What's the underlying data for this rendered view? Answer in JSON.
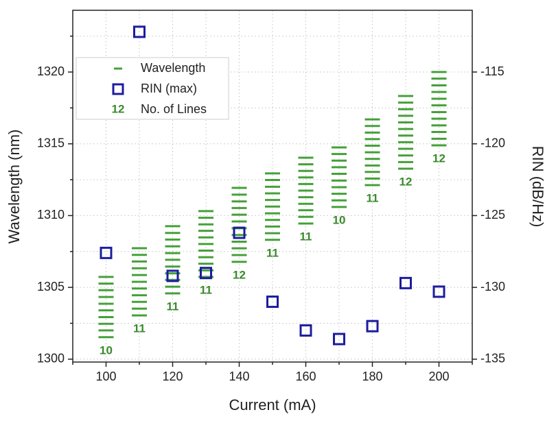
{
  "chart_data": {
    "type": "dual-axis-scatter",
    "x_label": "Current (mA)",
    "y_label": "Wavelength (nm)",
    "y2_label": "RIN (dB/Hz)",
    "xlim": [
      90,
      210
    ],
    "xticks": [
      100,
      120,
      140,
      160,
      180,
      200
    ],
    "xminorticks": [
      90,
      110,
      130,
      150,
      170,
      190,
      210
    ],
    "ylim": [
      1299.8,
      1324.3
    ],
    "yticks": [
      1300,
      1305,
      1310,
      1315,
      1320
    ],
    "yminorticks": [
      1302.5,
      1307.5,
      1312.5,
      1317.5,
      1322.5
    ],
    "y2lim": [
      -135.2,
      -110.7
    ],
    "y2ticks": [
      -135,
      -130,
      -125,
      -120,
      -115
    ],
    "grid": true,
    "legend": "upper left",
    "series": [
      {
        "name": "Wavelength",
        "color": "#44a038",
        "x": [
          100,
          110,
          120,
          130,
          140,
          150,
          160,
          170,
          180,
          190,
          200
        ],
        "values": [
          [
            1301.53,
            1302.0,
            1302.46,
            1302.93,
            1303.4,
            1303.86,
            1304.33,
            1304.8,
            1305.26,
            1305.73
          ],
          [
            1303.05,
            1303.52,
            1303.99,
            1304.45,
            1304.92,
            1305.39,
            1305.86,
            1306.33,
            1306.8,
            1307.26,
            1307.73
          ],
          [
            1304.58,
            1305.05,
            1305.52,
            1305.98,
            1306.45,
            1306.92,
            1307.39,
            1307.86,
            1308.33,
            1308.79,
            1309.26
          ],
          [
            1305.73,
            1306.19,
            1306.65,
            1307.1,
            1307.56,
            1308.02,
            1308.48,
            1308.94,
            1309.39,
            1309.85,
            1310.31
          ],
          [
            1306.78,
            1307.25,
            1307.72,
            1308.18,
            1308.65,
            1309.12,
            1309.59,
            1310.06,
            1310.53,
            1310.99,
            1311.46,
            1311.93
          ],
          [
            1308.31,
            1308.77,
            1309.24,
            1309.7,
            1310.16,
            1310.63,
            1311.09,
            1311.55,
            1312.01,
            1312.48,
            1312.94
          ],
          [
            1309.45,
            1309.91,
            1310.37,
            1310.82,
            1311.28,
            1311.74,
            1312.2,
            1312.66,
            1313.11,
            1313.57,
            1314.03
          ],
          [
            1310.6,
            1311.06,
            1311.52,
            1311.98,
            1312.44,
            1312.91,
            1313.37,
            1313.83,
            1314.29,
            1314.75
          ],
          [
            1312.12,
            1312.58,
            1313.04,
            1313.49,
            1313.95,
            1314.41,
            1314.87,
            1315.33,
            1315.78,
            1316.24,
            1316.7
          ],
          [
            1313.27,
            1313.73,
            1314.19,
            1314.65,
            1315.11,
            1315.57,
            1316.03,
            1316.49,
            1316.95,
            1317.41,
            1317.87,
            1318.33
          ],
          [
            1314.89,
            1315.35,
            1315.82,
            1316.28,
            1316.75,
            1317.21,
            1317.68,
            1318.14,
            1318.61,
            1319.07,
            1319.54,
            1320.0
          ]
        ]
      },
      {
        "name": "RIN (max)",
        "color": "#1c1c9e",
        "axis": "y2",
        "x": [
          100,
          110,
          120,
          130,
          140,
          150,
          160,
          170,
          180,
          190,
          200
        ],
        "values": [
          -127.6,
          -112.2,
          -129.2,
          -129.0,
          -126.2,
          -131.0,
          -133.0,
          -133.6,
          -132.7,
          -129.7,
          -130.3
        ]
      },
      {
        "name": "No. of Lines",
        "color": "#3a8a2c",
        "legend_sample": "12",
        "x": [
          100,
          110,
          120,
          130,
          140,
          150,
          160,
          170,
          180,
          190,
          200
        ],
        "values": [
          10,
          11,
          11,
          11,
          12,
          11,
          11,
          10,
          11,
          12,
          12
        ]
      }
    ]
  }
}
